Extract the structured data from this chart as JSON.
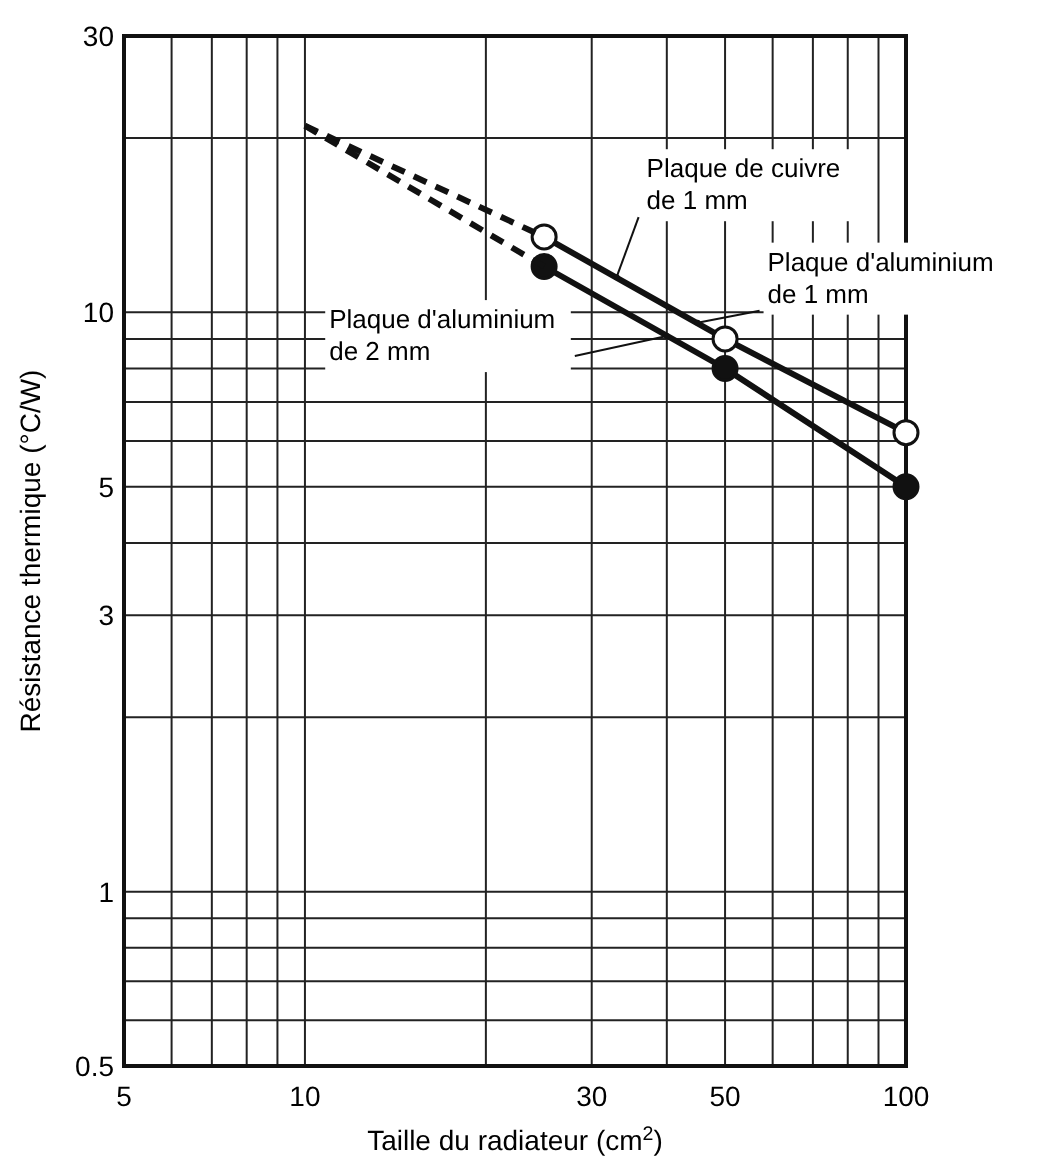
{
  "chart_data": {
    "type": "line",
    "xlabel": "Taille du radiateur  (cm$^{2}$)",
    "ylabel": "Résistance thermique (°C/W)",
    "log": "xy",
    "grid": true,
    "xlim": [
      5,
      100
    ],
    "ylim": [
      0.5,
      30
    ],
    "xticks": [
      5,
      10,
      30,
      50,
      100
    ],
    "yticks": [
      0.5,
      1,
      3,
      5,
      10,
      30
    ],
    "series": [
      {
        "color": "#111111",
        "marker": "none",
        "x": [
          25,
          50,
          100
        ],
        "values": [
          13.5,
          9,
          6.2
        ],
        "line_style": "solid"
      },
      {
        "color": "#111111",
        "marker": "circle",
        "x": [
          25,
          50,
          100
        ],
        "values": [
          12,
          8,
          5
        ],
        "line_style": "solid"
      },
      {
        "type": "scatter",
        "color": "#ffffff",
        "marker": "circle",
        "x": [
          25,
          50,
          100
        ],
        "values": [
          13.5,
          9,
          6.2
        ]
      },
      {
        "color": "#111111",
        "marker": "none",
        "x": [
          10,
          25
        ],
        "values": [
          21,
          13.5
        ],
        "line_style": "dashed"
      },
      {
        "color": "#111111",
        "marker": "none",
        "x": [
          10,
          25
        ],
        "values": [
          21,
          12
        ],
        "line_style": "dashed"
      }
    ],
    "annotations": [
      {
        "text": "Plaque de cuivre\nde 1 mm",
        "x": 33,
        "y": 11.5
      },
      {
        "text": "Plaque d'aluminium\nde 1 mm",
        "x": 45,
        "y": 9.6
      },
      {
        "text": "Plaque d'aluminium\nde 2 mm",
        "x": 40,
        "y": 9.1
      }
    ]
  }
}
